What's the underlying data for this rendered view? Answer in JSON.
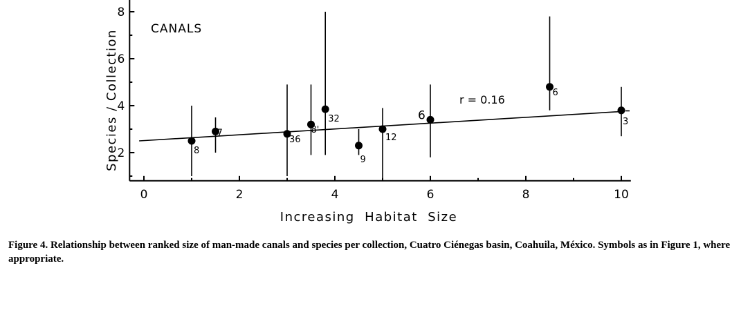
{
  "chart_data": {
    "type": "scatter",
    "title": "",
    "panel_label": "CANALS",
    "xlabel": "Increasing  Habitat  Size",
    "ylabel": "Species / Collection",
    "xlim": [
      -0.3,
      10.2
    ],
    "ylim": [
      0.8,
      8.5
    ],
    "x_ticks": [
      0,
      2,
      4,
      6,
      8,
      10
    ],
    "y_ticks": [
      2,
      4,
      6,
      8
    ],
    "grid": false,
    "points": [
      {
        "x": 1.0,
        "y": 2.5,
        "low": 1.0,
        "high": 4.0,
        "label": "8"
      },
      {
        "x": 1.5,
        "y": 2.9,
        "low": 2.0,
        "high": 3.5,
        "label": "7"
      },
      {
        "x": 3.0,
        "y": 2.8,
        "low": 1.0,
        "high": 4.9,
        "label": "36"
      },
      {
        "x": 3.5,
        "y": 3.2,
        "low": 1.9,
        "high": 4.9,
        "label": "8'"
      },
      {
        "x": 3.8,
        "y": 3.85,
        "low": 1.9,
        "high": 8.0,
        "label": "32"
      },
      {
        "x": 4.5,
        "y": 2.3,
        "low": 1.9,
        "high": 3.0,
        "label": "9"
      },
      {
        "x": 5.0,
        "y": 3.0,
        "low": 0.9,
        "high": 3.9,
        "label": "12"
      },
      {
        "x": 6.0,
        "y": 3.4,
        "low": 1.8,
        "high": 4.9,
        "label": "6"
      },
      {
        "x": 8.5,
        "y": 4.8,
        "low": 3.8,
        "high": 7.8,
        "label": "6"
      },
      {
        "x": 10.0,
        "y": 3.8,
        "low": 2.7,
        "high": 4.8,
        "label": "3"
      }
    ],
    "regression": {
      "x": [
        -0.1,
        10.0
      ],
      "y": [
        2.5,
        3.75
      ]
    },
    "annotation": "r = 0.16"
  },
  "caption": "Figure 4.  Relationship between ranked size of man-made canals and species per collection, Cuatro Ciénegas basin, Coahuila, México.  Symbols as in Figure 1, where appropriate."
}
